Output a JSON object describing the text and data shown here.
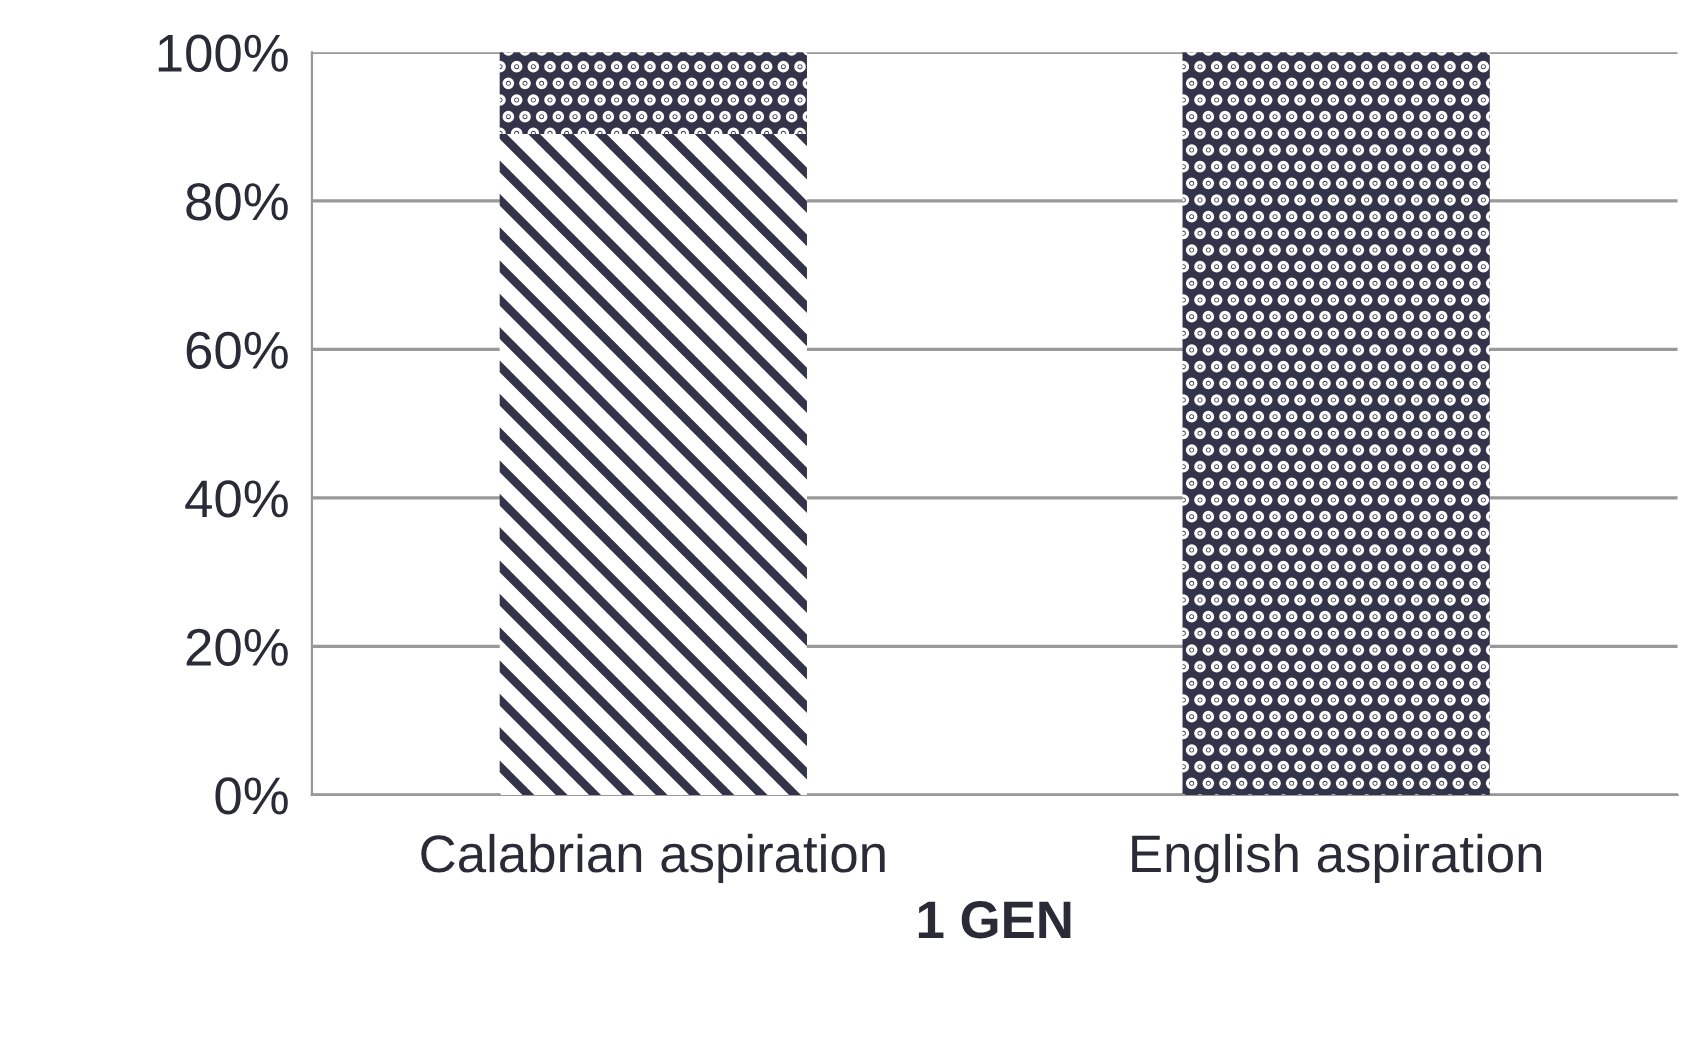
{
  "chart_data": {
    "type": "bar",
    "stacked": true,
    "xlabel": "1 GEN",
    "categories": [
      "Calabrian aspiration",
      "English aspiration"
    ],
    "series": [
      {
        "color": "#33334a",
        "values": [
          89,
          0
        ]
      },
      {
        "color": "#33334a",
        "values": [
          11,
          100
        ]
      }
    ],
    "ylim": [
      0,
      100
    ],
    "yticks": [
      {
        "value": 0,
        "label": "0%"
      },
      {
        "value": 20,
        "label": "20%"
      },
      {
        "value": 40,
        "label": "40%"
      },
      {
        "value": 60,
        "label": "60%"
      },
      {
        "value": 80,
        "label": "80%"
      },
      {
        "value": 100,
        "label": "100%"
      }
    ],
    "grid": "y"
  }
}
